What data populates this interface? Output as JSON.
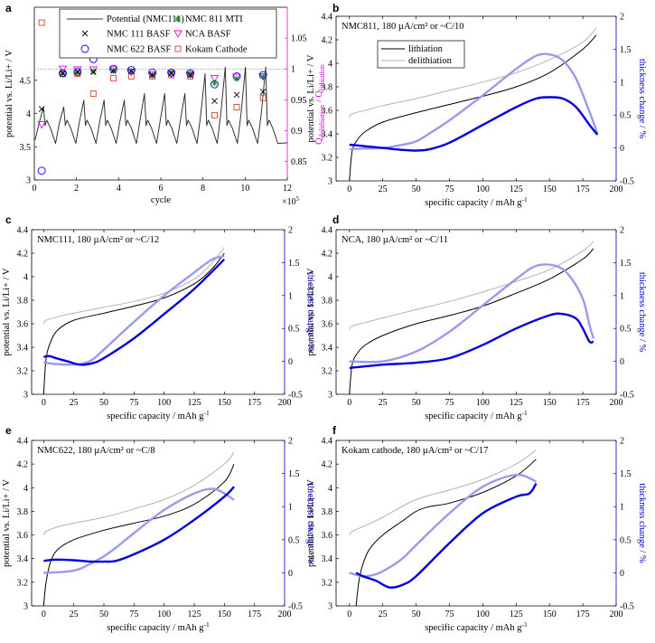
{
  "colors": {
    "lithiation": "#000000",
    "delithiation": "#b3b3b3",
    "thick_lith": "#0000dd",
    "thick_delith": "#9999ee",
    "magenta": "#ee00ee",
    "blue": "#0000cc",
    "orange": "#e0442a"
  },
  "chart_data": [
    {
      "id": "a",
      "letter": "a",
      "type": "line",
      "xlabel": "cycle",
      "ylabel": "potential vs. Li/Li+ / V",
      "ylabel_right_main": "Q",
      "ylabel_right_sub1": "delithiation",
      "ylabel_right_sep": " / Q",
      "ylabel_right_sub2": "lithiation",
      "xlim": [
        0,
        12
      ],
      "ylim": [
        3,
        5.6
      ],
      "y2lim": [
        0.82,
        1.1
      ],
      "xticks": [
        0,
        2,
        4,
        6,
        8,
        10,
        12
      ],
      "x_multiplier": "×10",
      "x_multiplier_exp": "5",
      "yticks": [
        3,
        3.5,
        4,
        4.5
      ],
      "y2ticks": [
        0.85,
        0.9,
        0.95,
        1,
        1.05
      ],
      "ref_line": 1.0,
      "legend": {
        "potential": "Potential (NMC111)",
        "nmc111": "NMC 111 BASF",
        "nmc622": "NMC 622 BASF",
        "nmc811": "NMC 811 MTI",
        "nca": "NCA BASF",
        "kokam": "Kokam Cathode"
      },
      "cycle_peaks": [
        4.1,
        4.1,
        4.2,
        4.2,
        4.2,
        4.3,
        4.3,
        4.3,
        4.6,
        4.7,
        4.7,
        4.7
      ],
      "markers": {
        "nmc111": {
          "x": [
            0.35,
            1.35,
            2.05,
            2.8,
            3.75,
            4.6,
            5.6,
            6.5,
            7.4,
            8.55,
            9.6,
            10.85
          ],
          "y": [
            0.935,
            0.993,
            0.995,
            0.995,
            0.997,
            0.996,
            0.99,
            0.993,
            0.99,
            0.948,
            0.958,
            0.963
          ]
        },
        "nmc622": {
          "x": [
            0.35,
            1.35,
            2.05,
            2.8,
            3.75,
            4.6,
            5.6,
            6.5,
            7.4,
            8.55,
            9.6,
            10.85
          ],
          "y": [
            0.835,
            0.993,
            0.995,
            1.016,
            1.0,
            0.998,
            0.994,
            0.994,
            0.993,
            0.975,
            0.988,
            0.99
          ]
        },
        "nmc811": {
          "x": [
            1.35,
            2.05,
            2.8,
            3.75,
            4.6,
            5.6,
            6.5,
            7.4,
            8.55,
            9.6,
            10.85
          ],
          "y": [
            0.992,
            0.994,
            0.996,
            0.997,
            0.996,
            0.99,
            0.994,
            0.992,
            0.977,
            0.984,
            0.988
          ]
        },
        "nca": {
          "x": [
            0.35,
            1.35,
            2.05,
            2.8,
            3.75,
            4.6,
            5.6,
            6.5,
            7.4,
            8.55,
            9.6,
            10.85
          ],
          "y": [
            0.91,
            1.0,
            0.999,
            0.999,
            0.999,
            0.995,
            0.991,
            0.992,
            0.991,
            0.985,
            0.987,
            0.988
          ]
        },
        "kokam": {
          "x": [
            0.35,
            1.35,
            2.05,
            2.8,
            3.75,
            4.6,
            5.6,
            6.5,
            7.4,
            8.55,
            9.6,
            10.85
          ],
          "y": [
            1.075,
            0.992,
            0.992,
            0.96,
            0.985,
            0.988,
            0.988,
            0.99,
            0.988,
            0.925,
            0.938,
            0.953
          ]
        }
      }
    },
    {
      "id": "b",
      "letter": "b",
      "type": "line",
      "title": "NMC811, 180 µA/cm² or ~C/10",
      "legend": {
        "lithiation": "lithiation",
        "delithiation": "delithiation"
      },
      "xlabel": "specific capacity / mAh g",
      "xlabel_sup": "-1",
      "ylabel": "potential vs. Li/Li+ / V",
      "ylabel_right": "thickness change / %",
      "xlim": [
        -10,
        200
      ],
      "ylim": [
        3,
        4.4
      ],
      "y2lim": [
        -0.5,
        2
      ],
      "xticks": [
        0,
        25,
        50,
        75,
        100,
        125,
        150,
        175,
        200
      ],
      "yticks": [
        3,
        3.2,
        3.4,
        3.6,
        3.8,
        4,
        4.2,
        4.4
      ],
      "y2ticks": [
        -0.5,
        0,
        0.5,
        1,
        1.5,
        2
      ],
      "lith": {
        "x": [
          0,
          2,
          6,
          12,
          25,
          50,
          75,
          100,
          125,
          150,
          175,
          185
        ],
        "y": [
          3.0,
          3.25,
          3.35,
          3.42,
          3.5,
          3.58,
          3.65,
          3.72,
          3.8,
          3.92,
          4.12,
          4.24
        ]
      },
      "delith": {
        "x": [
          0,
          2,
          12,
          25,
          50,
          75,
          100,
          125,
          150,
          175,
          185
        ],
        "y": [
          3.54,
          3.57,
          3.6,
          3.64,
          3.7,
          3.77,
          3.84,
          3.92,
          4.03,
          4.18,
          4.3
        ]
      },
      "t_lith": {
        "x": [
          0,
          10,
          25,
          40,
          50,
          60,
          75,
          100,
          125,
          140,
          150,
          160,
          170,
          180,
          186
        ],
        "y": [
          0.05,
          0.03,
          0.0,
          -0.03,
          -0.04,
          -0.02,
          0.08,
          0.35,
          0.62,
          0.75,
          0.77,
          0.75,
          0.62,
          0.35,
          0.2
        ]
      },
      "t_delith": {
        "x": [
          0,
          10,
          25,
          40,
          50,
          60,
          75,
          100,
          125,
          140,
          150,
          160,
          170,
          180,
          186
        ],
        "y": [
          -0.02,
          -0.01,
          0.0,
          0.05,
          0.1,
          0.22,
          0.42,
          0.8,
          1.2,
          1.4,
          1.42,
          1.33,
          1.05,
          0.55,
          0.22
        ]
      }
    },
    {
      "id": "c",
      "letter": "c",
      "type": "line",
      "title": "NMC111, 180 µA/cm² or ~C/12",
      "xlabel": "specific capacity / mAh g",
      "xlabel_sup": "-1",
      "ylabel": "potential vs. Li/Li+ / V",
      "ylabel_right": "thickness change / %",
      "xlim": [
        -10,
        200
      ],
      "ylim": [
        3,
        4.4
      ],
      "y2lim": [
        -0.5,
        2
      ],
      "xticks": [
        0,
        25,
        50,
        75,
        100,
        125,
        150,
        175,
        200
      ],
      "yticks": [
        3,
        3.2,
        3.4,
        3.6,
        3.8,
        4,
        4.2,
        4.4
      ],
      "y2ticks": [
        -0.5,
        0,
        0.5,
        1,
        1.5,
        2
      ],
      "lith": {
        "x": [
          0,
          2,
          6,
          12,
          25,
          50,
          75,
          100,
          125,
          140,
          150
        ],
        "y": [
          3.0,
          3.3,
          3.45,
          3.55,
          3.63,
          3.69,
          3.75,
          3.82,
          3.94,
          4.07,
          4.2
        ]
      },
      "delith": {
        "x": [
          0,
          2,
          12,
          25,
          50,
          75,
          100,
          125,
          140,
          150
        ],
        "y": [
          3.6,
          3.63,
          3.66,
          3.69,
          3.74,
          3.79,
          3.86,
          3.98,
          4.12,
          4.25
        ]
      },
      "t_lith": {
        "x": [
          0,
          5,
          10,
          20,
          30,
          40,
          50,
          75,
          100,
          125,
          150
        ],
        "y": [
          0.07,
          0.08,
          0.05,
          0.0,
          -0.05,
          -0.03,
          0.05,
          0.35,
          0.72,
          1.1,
          1.55
        ]
      },
      "t_delith": {
        "x": [
          0,
          5,
          10,
          20,
          30,
          40,
          50,
          75,
          100,
          125,
          140,
          150
        ],
        "y": [
          -0.01,
          -0.03,
          -0.04,
          -0.05,
          -0.04,
          0.02,
          0.18,
          0.6,
          1.0,
          1.35,
          1.55,
          1.6
        ]
      }
    },
    {
      "id": "d",
      "letter": "d",
      "type": "line",
      "title": "NCA, 180 µA/cm² or ~C/11",
      "xlabel": "specific capacity / mAh g",
      "xlabel_sup": "-1",
      "ylabel": "potential vs. Li/Li+ / V",
      "ylabel_right": "thickness change / %",
      "xlim": [
        -10,
        200
      ],
      "ylim": [
        3,
        4.4
      ],
      "y2lim": [
        -0.5,
        2
      ],
      "xticks": [
        0,
        25,
        50,
        75,
        100,
        125,
        150,
        175,
        200
      ],
      "yticks": [
        3,
        3.2,
        3.4,
        3.6,
        3.8,
        4,
        4.2,
        4.4
      ],
      "y2ticks": [
        -0.5,
        0,
        0.5,
        1,
        1.5,
        2
      ],
      "lith": {
        "x": [
          0,
          2,
          6,
          12,
          25,
          50,
          75,
          100,
          125,
          150,
          175,
          183
        ],
        "y": [
          3.0,
          3.25,
          3.35,
          3.42,
          3.5,
          3.6,
          3.67,
          3.75,
          3.86,
          3.98,
          4.15,
          4.24
        ]
      },
      "delith": {
        "x": [
          0,
          2,
          12,
          25,
          50,
          75,
          100,
          125,
          150,
          175,
          183
        ],
        "y": [
          3.55,
          3.58,
          3.61,
          3.65,
          3.72,
          3.79,
          3.87,
          3.96,
          4.06,
          4.22,
          4.3
        ]
      },
      "t_lith": {
        "x": [
          0,
          25,
          50,
          75,
          100,
          125,
          150,
          160,
          170,
          175,
          180,
          183
        ],
        "y": [
          -0.1,
          -0.05,
          -0.02,
          0.05,
          0.25,
          0.5,
          0.7,
          0.72,
          0.65,
          0.5,
          0.3,
          0.3
        ]
      },
      "t_delith": {
        "x": [
          0,
          25,
          50,
          75,
          100,
          125,
          140,
          155,
          165,
          175,
          180,
          183
        ],
        "y": [
          0.0,
          0.0,
          0.15,
          0.45,
          0.85,
          1.25,
          1.45,
          1.45,
          1.3,
          0.95,
          0.55,
          0.35
        ]
      }
    },
    {
      "id": "e",
      "letter": "e",
      "type": "line",
      "title": "NMC622, 180 µA/cm² or ~C/8",
      "xlabel": "specific capacity / mAh g",
      "xlabel_sup": "-1",
      "ylabel": "potential vs. Li/Li+ / V",
      "ylabel_right": "thickness change / %",
      "xlim": [
        -10,
        200
      ],
      "ylim": [
        3,
        4.4
      ],
      "y2lim": [
        -0.5,
        2
      ],
      "xticks": [
        0,
        25,
        50,
        75,
        100,
        125,
        150,
        175,
        200
      ],
      "yticks": [
        3,
        3.2,
        3.4,
        3.6,
        3.8,
        4,
        4.2,
        4.4
      ],
      "y2ticks": [
        -0.5,
        0,
        0.5,
        1,
        1.5,
        2
      ],
      "lith": {
        "x": [
          0,
          2,
          6,
          12,
          25,
          50,
          75,
          100,
          125,
          150,
          158
        ],
        "y": [
          3.0,
          3.2,
          3.38,
          3.48,
          3.56,
          3.64,
          3.7,
          3.76,
          3.86,
          4.05,
          4.2
        ]
      },
      "delith": {
        "x": [
          0,
          2,
          12,
          25,
          50,
          75,
          100,
          125,
          150,
          158
        ],
        "y": [
          3.6,
          3.63,
          3.67,
          3.7,
          3.75,
          3.82,
          3.9,
          4.02,
          4.2,
          4.3
        ]
      },
      "t_lith": {
        "x": [
          0,
          10,
          25,
          40,
          50,
          60,
          75,
          100,
          125,
          150,
          158
        ],
        "y": [
          0.18,
          0.2,
          0.19,
          0.17,
          0.17,
          0.18,
          0.28,
          0.5,
          0.8,
          1.15,
          1.3
        ]
      },
      "t_delith": {
        "x": [
          0,
          20,
          30,
          40,
          50,
          60,
          75,
          100,
          125,
          140,
          150,
          158
        ],
        "y": [
          0.0,
          0.02,
          0.06,
          0.15,
          0.25,
          0.38,
          0.6,
          0.95,
          1.2,
          1.27,
          1.2,
          1.1
        ]
      }
    },
    {
      "id": "f",
      "letter": "f",
      "type": "line",
      "title": "Kokam cathode, 180 µA/cm² or ~C/17",
      "xlabel": "specific capacity / mAh g",
      "xlabel_sup": "-1",
      "ylabel": "potential vs. Li/Li+ / V",
      "ylabel_right": "thickness change / %",
      "xlim": [
        -10,
        200
      ],
      "ylim": [
        3,
        4.4
      ],
      "y2lim": [
        -0.5,
        2
      ],
      "xticks": [
        0,
        25,
        50,
        75,
        100,
        125,
        150,
        175,
        200
      ],
      "yticks": [
        3,
        3.2,
        3.4,
        3.6,
        3.8,
        4,
        4.2,
        4.4
      ],
      "y2ticks": [
        -0.5,
        0,
        0.5,
        1,
        1.5,
        2
      ],
      "lith": {
        "x": [
          5,
          7,
          10,
          15,
          25,
          40,
          50,
          60,
          75,
          100,
          125,
          140
        ],
        "y": [
          3.0,
          3.2,
          3.35,
          3.48,
          3.6,
          3.72,
          3.8,
          3.84,
          3.87,
          3.96,
          4.1,
          4.24
        ]
      },
      "delith": {
        "x": [
          0,
          2,
          12,
          25,
          50,
          75,
          100,
          125,
          140
        ],
        "y": [
          3.6,
          3.63,
          3.68,
          3.75,
          3.9,
          3.98,
          4.07,
          4.2,
          4.32
        ]
      },
      "t_lith": {
        "x": [
          5,
          10,
          20,
          30,
          40,
          50,
          75,
          100,
          125,
          135,
          140
        ],
        "y": [
          0.0,
          -0.05,
          -0.12,
          -0.22,
          -0.18,
          -0.05,
          0.45,
          0.9,
          1.15,
          1.2,
          1.35
        ]
      },
      "t_delith": {
        "x": [
          0,
          10,
          20,
          30,
          40,
          50,
          75,
          100,
          125,
          140
        ],
        "y": [
          0.0,
          -0.05,
          -0.02,
          0.08,
          0.22,
          0.42,
          0.9,
          1.3,
          1.48,
          1.38
        ]
      }
    }
  ]
}
